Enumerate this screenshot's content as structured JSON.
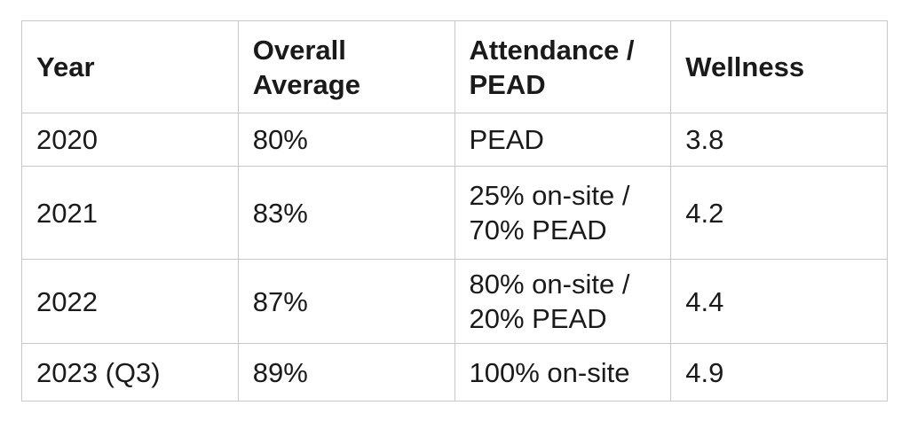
{
  "colors": {
    "background": "#ffffff",
    "border": "#c7c7c9",
    "text": "#1a1a1a"
  },
  "chart_data": {
    "type": "table",
    "columns": [
      "Year",
      "Overall Average",
      "Attendance / PEAD",
      "Wellness"
    ],
    "rows": [
      [
        "2020",
        "80%",
        "PEAD",
        "3.8"
      ],
      [
        "2021",
        "83%",
        "25% on-site / 70% PEAD",
        "4.2"
      ],
      [
        "2022",
        "87%",
        "80% on-site / 20% PEAD",
        "4.4"
      ],
      [
        "2023 (Q3)",
        "89%",
        "100% on-site",
        "4.9"
      ]
    ]
  }
}
